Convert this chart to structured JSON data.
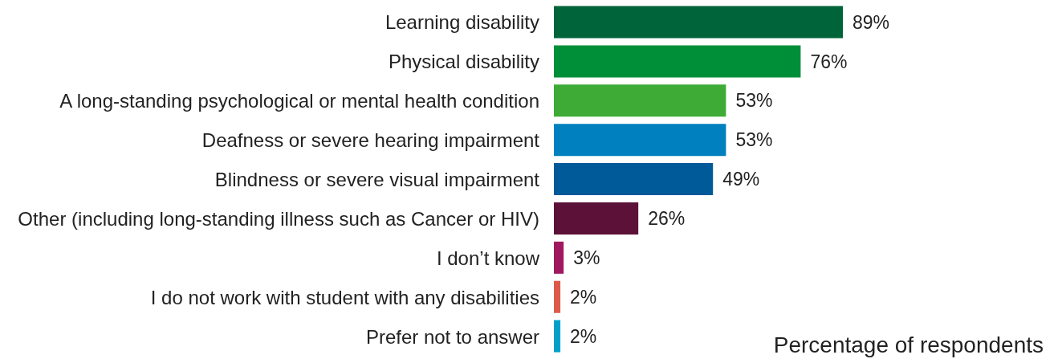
{
  "chart_data": {
    "type": "bar",
    "orientation": "horizontal",
    "tick_labels": "y",
    "xlabel": "Percentage of respondents",
    "categories": [
      "Learning disability",
      "Physical disability",
      "A long-standing psychological or mental health condition",
      "Deafness or severe hearing impairment",
      "Blindness or severe visual impairment",
      "Other (including long-standing illness such as Cancer or HIV)",
      "I don’t know",
      "I do not work with student with any disabilities",
      "Prefer not to answer"
    ],
    "values": [
      89,
      76,
      53,
      53,
      49,
      26,
      3,
      2,
      2
    ],
    "colors": [
      "#00643a",
      "#008f39",
      "#3dab35",
      "#0080be",
      "#005a99",
      "#5c1238",
      "#a0195e",
      "#dc5a4a",
      "#00a0cb"
    ],
    "value_labels": [
      "89%",
      "76%",
      "53%",
      "53%",
      "49%",
      "26%",
      "3%",
      "2%",
      "2%"
    ]
  }
}
